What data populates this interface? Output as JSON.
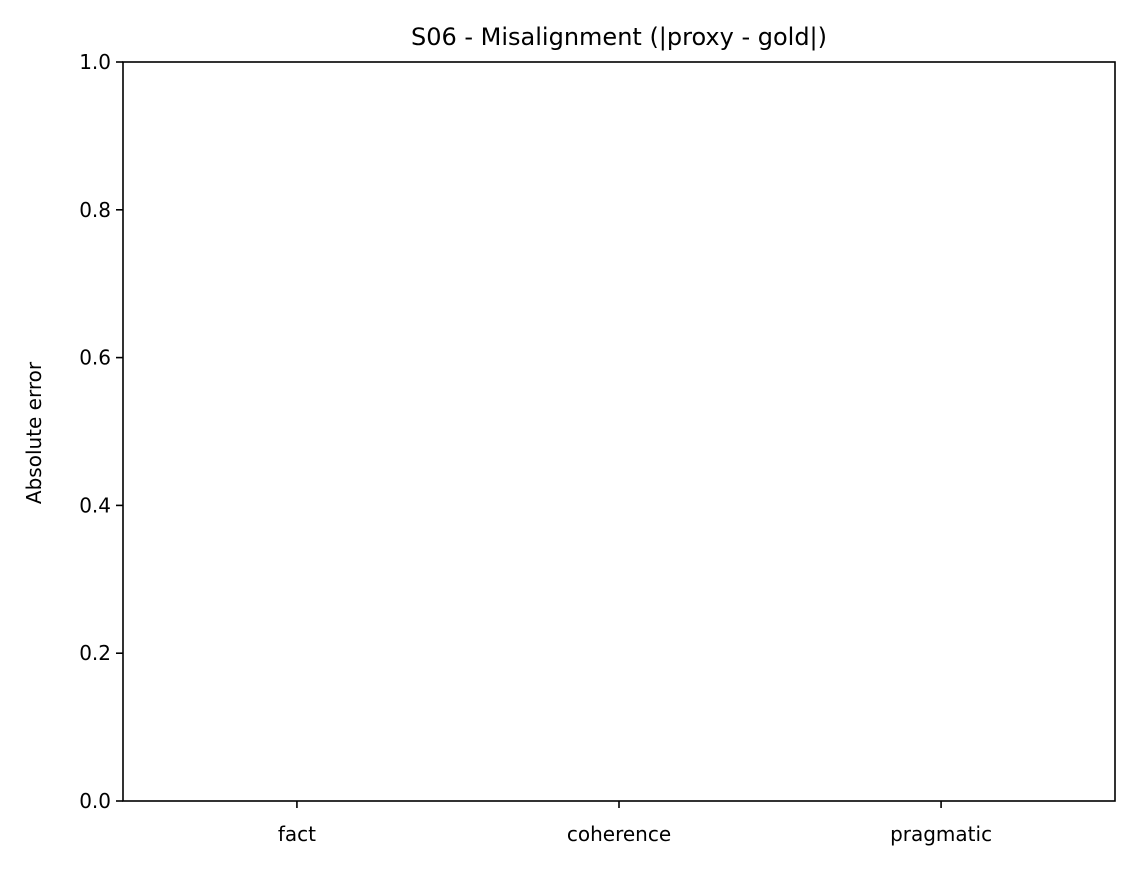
{
  "chart_data": {
    "type": "bar",
    "title": "S06 - Misalignment (|proxy - gold|)",
    "xlabel": "",
    "ylabel": "Absolute error",
    "categories": [
      "fact",
      "coherence",
      "pragmatic"
    ],
    "values": [
      0.0,
      0.0,
      0.0
    ],
    "ylim": [
      0,
      1.0
    ],
    "yticks": [
      "0.0",
      "0.2",
      "0.4",
      "0.6",
      "0.8",
      "1.0"
    ],
    "ytick_values": [
      0.0,
      0.2,
      0.4,
      0.6,
      0.8,
      1.0
    ],
    "grid": false,
    "bar_color": "#1f77b4"
  }
}
